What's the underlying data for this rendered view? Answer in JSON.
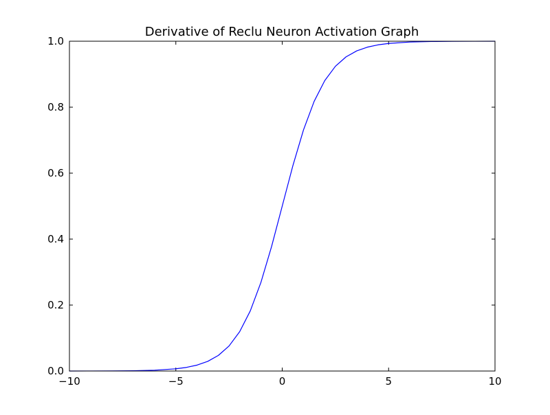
{
  "chart_data": {
    "type": "line",
    "title": "Derivative of Reclu Neuron Activation Graph",
    "xlabel": "",
    "ylabel": "",
    "xlim": [
      -10,
      10
    ],
    "ylim": [
      0.0,
      1.0
    ],
    "grid": false,
    "x_ticks": [
      -10,
      -5,
      0,
      5,
      10
    ],
    "x_tick_labels": [
      "−10",
      "−5",
      "0",
      "5",
      "10"
    ],
    "y_ticks": [
      0.0,
      0.2,
      0.4,
      0.6,
      0.8,
      1.0
    ],
    "y_tick_labels": [
      "0.0",
      "0.2",
      "0.4",
      "0.6",
      "0.8",
      "1.0"
    ],
    "line_color": "#0000ff",
    "series": [
      {
        "x": [
          -10,
          -9,
          -8,
          -7,
          -6,
          -5,
          -4.5,
          -4,
          -3.5,
          -3,
          -2.5,
          -2,
          -1.5,
          -1,
          -0.5,
          0,
          0.5,
          1,
          1.5,
          2,
          2.5,
          3,
          3.5,
          4,
          4.5,
          5,
          6,
          7,
          8,
          9,
          10
        ],
        "y": [
          0.0,
          0.0001,
          0.0003,
          0.0009,
          0.0025,
          0.0067,
          0.011,
          0.018,
          0.0293,
          0.0474,
          0.0759,
          0.1192,
          0.1824,
          0.2689,
          0.3775,
          0.5,
          0.6225,
          0.7311,
          0.8176,
          0.8808,
          0.9241,
          0.9526,
          0.9707,
          0.982,
          0.989,
          0.9933,
          0.9975,
          0.9991,
          0.9997,
          0.9999,
          1.0
        ]
      }
    ]
  }
}
